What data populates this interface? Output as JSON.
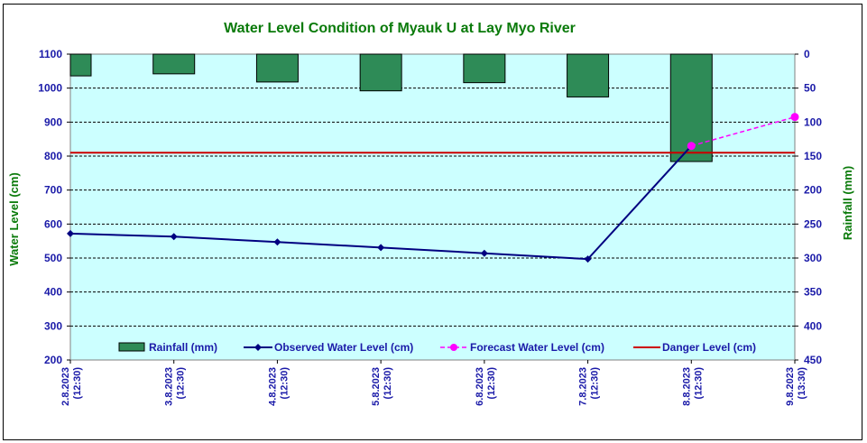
{
  "chart_data": {
    "type": "line",
    "title": "Water Level Condition of Myauk U at Lay Myo River",
    "ylabel": "Water Level (cm)",
    "y2label": "Rainfall (mm)",
    "ylim": [
      200,
      1100
    ],
    "y2lim": [
      0,
      450
    ],
    "y2_inverted": true,
    "yticks": [
      "200",
      "300",
      "400",
      "500",
      "600",
      "700",
      "800",
      "900",
      "1000",
      "1100"
    ],
    "y2ticks": [
      "0",
      "50",
      "100",
      "150",
      "200",
      "250",
      "300",
      "350",
      "400",
      "450"
    ],
    "categories": [
      [
        "2.8.2023",
        "(12:30)"
      ],
      [
        "3.8.2023",
        "(12:30)"
      ],
      [
        "4.8.2023",
        "(12:30)"
      ],
      [
        "5.8.2023",
        "(12:30)"
      ],
      [
        "6.8.2023",
        "(12:30)"
      ],
      [
        "7.8.2023",
        "(12:30)"
      ],
      [
        "8.8.2023",
        "(12:30)"
      ],
      [
        "9.8.2023",
        "(13:30)"
      ]
    ],
    "grid": true,
    "legend_position": "bottom-inside",
    "series": [
      {
        "name": "Rainfall (mm)",
        "kind": "bar",
        "axis": "y2",
        "color": "#2e8b57",
        "values": [
          32,
          29,
          41,
          54,
          42,
          63,
          158,
          null
        ]
      },
      {
        "name": "Observed Water Level (cm)",
        "kind": "line",
        "axis": "y",
        "color": "#000080",
        "marker": "diamond",
        "values": [
          572,
          563,
          547,
          531,
          514,
          497,
          830,
          null
        ]
      },
      {
        "name": "Forecast Water Level (cm)",
        "kind": "dashed-line",
        "axis": "y",
        "color": "#ff00ff",
        "marker": "circle",
        "values": [
          null,
          null,
          null,
          null,
          null,
          null,
          830,
          915
        ]
      },
      {
        "name": "Danger Level (cm)",
        "kind": "hline",
        "axis": "y",
        "color": "#cc0000",
        "value": 810
      }
    ],
    "plot_background": "#ccffff"
  }
}
